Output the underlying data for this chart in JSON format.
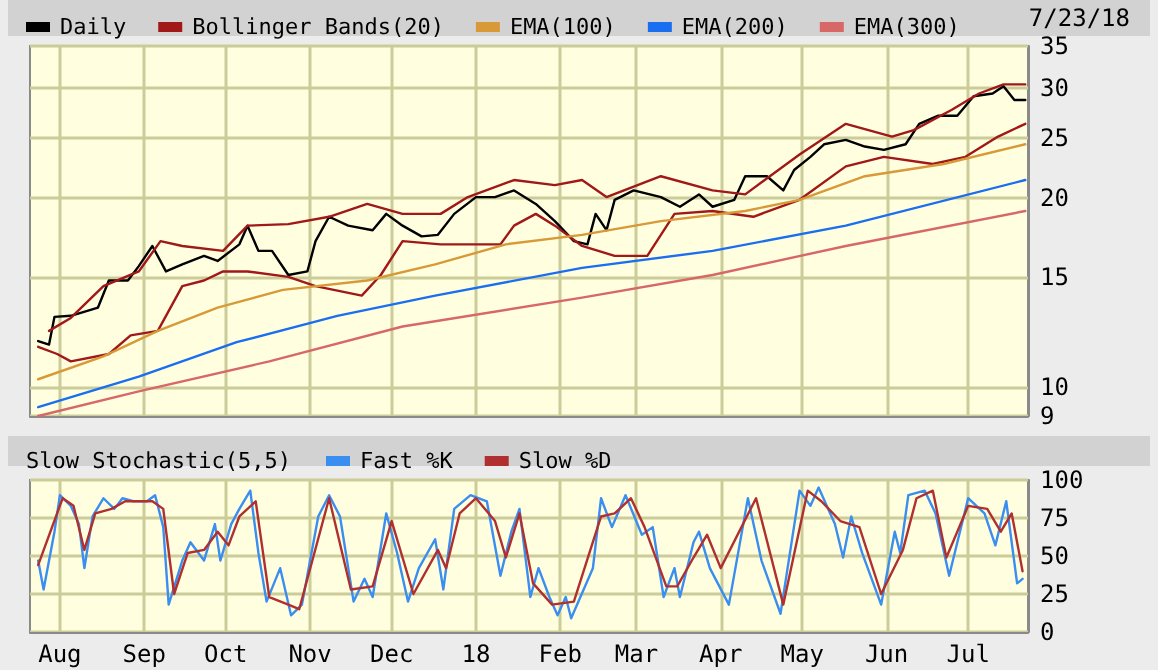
{
  "chart_data": [
    {
      "type": "line",
      "legend": "top",
      "log": true,
      "grid": true,
      "tick_labels": "y",
      "marker": "none",
      "line_style": "solid",
      "annotations": [
        "7/23/18"
      ],
      "xlim": [
        "2017-07-21",
        "2018-07-23"
      ],
      "xticks": [
        {
          "value": "2017-08-01",
          "label": null
        },
        {
          "value": "2017-09-01",
          "label": null
        },
        {
          "value": "2017-10-01",
          "label": null
        },
        {
          "value": "2017-11-01",
          "label": null
        },
        {
          "value": "2017-12-01",
          "label": null
        },
        {
          "value": "2018-01-01",
          "label": null
        },
        {
          "value": "2018-02-01",
          "label": null
        },
        {
          "value": "2018-03-01",
          "label": null
        },
        {
          "value": "2018-04-01",
          "label": null
        },
        {
          "value": "2018-05-01",
          "label": null
        },
        {
          "value": "2018-06-01",
          "label": null
        },
        {
          "value": "2018-07-01",
          "label": null
        }
      ],
      "ylim": [
        9,
        35
      ],
      "yticks": [
        9,
        10,
        15,
        20,
        25,
        30,
        35
      ],
      "series": [
        {
          "name": "Daily",
          "color": "#000000",
          "x": [
            "2017-07-24",
            "2017-07-28",
            "2017-07-30",
            "2017-08-05",
            "2017-08-15",
            "2017-08-19",
            "2017-08-26",
            "2017-08-30",
            "2017-09-04",
            "2017-09-09",
            "2017-09-15",
            "2017-09-23",
            "2017-09-28",
            "2017-10-06",
            "2017-10-09",
            "2017-10-13",
            "2017-10-18",
            "2017-10-24",
            "2017-10-31",
            "2017-11-03",
            "2017-11-08",
            "2017-11-15",
            "2017-11-24",
            "2017-11-29",
            "2017-12-05",
            "2017-12-12",
            "2017-12-18",
            "2017-12-24",
            "2018-01-01",
            "2018-01-08",
            "2018-01-15",
            "2018-01-23",
            "2018-01-30",
            "2018-02-06",
            "2018-02-11",
            "2018-02-14",
            "2018-02-18",
            "2018-02-21",
            "2018-02-28",
            "2018-03-10",
            "2018-03-17",
            "2018-03-24",
            "2018-03-29",
            "2018-04-06",
            "2018-04-10",
            "2018-04-18",
            "2018-04-24",
            "2018-04-28",
            "2018-05-04",
            "2018-05-09",
            "2018-05-17",
            "2018-05-24",
            "2018-05-31",
            "2018-06-08",
            "2018-06-13",
            "2018-06-20",
            "2018-06-27",
            "2018-07-03",
            "2018-07-10",
            "2018-07-14",
            "2018-07-18",
            "2018-07-22"
          ],
          "values": [
            11.85,
            11.7,
            12.95,
            13.0,
            13.4,
            14.8,
            14.8,
            15.6,
            16.8,
            15.3,
            15.7,
            16.2,
            15.9,
            16.9,
            18.1,
            16.5,
            16.5,
            15.1,
            15.3,
            17.1,
            18.7,
            18.1,
            17.8,
            18.9,
            18.1,
            17.4,
            17.5,
            18.9,
            20.1,
            20.1,
            20.6,
            19.6,
            18.4,
            17.1,
            16.9,
            18.9,
            17.8,
            19.9,
            20.6,
            20.1,
            19.4,
            20.3,
            19.4,
            19.9,
            21.7,
            21.7,
            20.6,
            22.2,
            23.3,
            24.4,
            24.8,
            24.2,
            23.9,
            24.4,
            26.3,
            27.1,
            27.1,
            29.1,
            29.4,
            30.2,
            28.7,
            28.7
          ]
        },
        {
          "name": "Bollinger Bands(20)",
          "color": "#a01818",
          "x": [
            "2017-07-28",
            "2017-08-05",
            "2017-08-17",
            "2017-08-30",
            "2017-09-07",
            "2017-09-15",
            "2017-09-30",
            "2017-10-09",
            "2017-10-24",
            "2017-11-08",
            "2017-11-22",
            "2017-12-05",
            "2017-12-19",
            "2017-12-29",
            "2018-01-15",
            "2018-01-30",
            "2018-02-09",
            "2018-02-18",
            "2018-03-10",
            "2018-03-29",
            "2018-04-10",
            "2018-04-30",
            "2018-05-17",
            "2018-06-03",
            "2018-06-11",
            "2018-06-25",
            "2018-07-05",
            "2018-07-14",
            "2018-07-22"
          ],
          "values": [
            12.3,
            12.9,
            14.5,
            15.3,
            17.1,
            16.8,
            16.5,
            18.1,
            18.2,
            18.7,
            19.6,
            18.9,
            18.9,
            20.1,
            21.4,
            21.0,
            21.4,
            20.1,
            21.7,
            20.6,
            20.3,
            23.5,
            26.3,
            25.1,
            25.7,
            27.7,
            29.4,
            30.4,
            30.4
          ]
        },
        {
          "color": "#a01818",
          "x": [
            "2017-07-24",
            "2017-07-31",
            "2017-08-05",
            "2017-08-19",
            "2017-08-27",
            "2017-09-06",
            "2017-09-15",
            "2017-09-23",
            "2017-09-30",
            "2017-10-09",
            "2017-10-24",
            "2017-11-03",
            "2017-11-20",
            "2017-11-27",
            "2017-12-05",
            "2017-12-19",
            "2017-12-29",
            "2018-01-10",
            "2018-01-15",
            "2018-01-23",
            "2018-01-30",
            "2018-02-09",
            "2018-02-21",
            "2018-03-05",
            "2018-03-15",
            "2018-03-29",
            "2018-04-13",
            "2018-04-30",
            "2018-05-17",
            "2018-05-31",
            "2018-06-18",
            "2018-06-30",
            "2018-07-12",
            "2018-07-22"
          ],
          "values": [
            11.6,
            11.3,
            11.0,
            11.3,
            12.1,
            12.3,
            14.5,
            14.8,
            15.3,
            15.3,
            15.0,
            14.5,
            14.0,
            15.1,
            17.1,
            16.9,
            16.9,
            16.9,
            18.1,
            18.9,
            18.1,
            16.8,
            16.2,
            16.2,
            18.9,
            19.1,
            18.7,
            19.9,
            22.5,
            23.3,
            22.7,
            23.3,
            25.1,
            26.3
          ]
        },
        {
          "name": "EMA(100)",
          "color": "#d89a38",
          "x": [
            "2017-07-24",
            "2017-08-17",
            "2017-09-06",
            "2017-09-28",
            "2017-10-22",
            "2017-11-22",
            "2017-12-17",
            "2018-01-12",
            "2018-02-09",
            "2018-03-10",
            "2018-04-10",
            "2018-04-30",
            "2018-05-24",
            "2018-06-22",
            "2018-07-22"
          ],
          "values": [
            10.3,
            11.2,
            12.3,
            13.4,
            14.3,
            14.8,
            15.7,
            16.9,
            17.5,
            18.4,
            19.1,
            19.9,
            21.7,
            22.7,
            24.4
          ]
        },
        {
          "name": "EMA(200)",
          "color": "#1a6ef0",
          "x": [
            "2017-07-24",
            "2017-08-30",
            "2017-10-05",
            "2017-11-11",
            "2017-12-17",
            "2018-02-09",
            "2018-03-29",
            "2018-05-17",
            "2018-07-22"
          ],
          "values": [
            9.3,
            10.4,
            11.8,
            13.0,
            14.0,
            15.5,
            16.5,
            18.1,
            21.4
          ]
        },
        {
          "name": "EMA(300)",
          "color": "#d86868",
          "x": [
            "2017-07-24",
            "2017-08-30",
            "2017-10-17",
            "2017-12-05",
            "2018-02-09",
            "2018-03-29",
            "2018-05-17",
            "2018-07-22"
          ],
          "values": [
            9.0,
            9.85,
            11.0,
            12.5,
            13.9,
            15.1,
            16.8,
            19.1
          ]
        }
      ]
    },
    {
      "type": "line",
      "title": "Slow Stochastic(5,5)",
      "legend": "top",
      "grid": true,
      "marker": "none",
      "line_style": "solid",
      "xlim": [
        "2017-07-21",
        "2018-07-23"
      ],
      "xticks": [
        {
          "value": "2017-08-01",
          "label": "Aug"
        },
        {
          "value": "2017-09-01",
          "label": "Sep"
        },
        {
          "value": "2017-10-01",
          "label": "Oct"
        },
        {
          "value": "2017-11-01",
          "label": "Nov"
        },
        {
          "value": "2017-12-01",
          "label": "Dec"
        },
        {
          "value": "2018-01-01",
          "label": "18"
        },
        {
          "value": "2018-02-01",
          "label": "Feb"
        },
        {
          "value": "2018-03-01",
          "label": "Mar"
        },
        {
          "value": "2018-04-01",
          "label": "Apr"
        },
        {
          "value": "2018-05-01",
          "label": "May"
        },
        {
          "value": "2018-06-01",
          "label": "Jun"
        },
        {
          "value": "2018-07-01",
          "label": "Jul"
        }
      ],
      "ylim": [
        0,
        100
      ],
      "yticks": [
        0,
        25,
        50,
        75,
        100
      ],
      "series": [
        {
          "name": "Fast %K",
          "color": "#3a8ef0",
          "x": [
            "2017-07-24",
            "2017-07-26",
            "2017-07-30",
            "2017-08-01",
            "2017-08-05",
            "2017-08-08",
            "2017-08-10",
            "2017-08-13",
            "2017-08-17",
            "2017-08-21",
            "2017-08-24",
            "2017-08-28",
            "2017-09-02",
            "2017-09-05",
            "2017-09-08",
            "2017-09-10",
            "2017-09-15",
            "2017-09-18",
            "2017-09-23",
            "2017-09-27",
            "2017-09-29",
            "2017-10-03",
            "2017-10-06",
            "2017-10-10",
            "2017-10-13",
            "2017-10-16",
            "2017-10-21",
            "2017-10-25",
            "2017-10-29",
            "2017-11-04",
            "2017-11-08",
            "2017-11-12",
            "2017-11-17",
            "2017-11-21",
            "2017-11-24",
            "2017-11-29",
            "2017-12-03",
            "2017-12-07",
            "2017-12-11",
            "2017-12-17",
            "2017-12-20",
            "2017-12-24",
            "2017-12-30",
            "2018-01-05",
            "2018-01-10",
            "2018-01-14",
            "2018-01-17",
            "2018-01-21",
            "2018-01-24",
            "2018-01-28",
            "2018-01-31",
            "2018-02-03",
            "2018-02-05",
            "2018-02-13",
            "2018-02-16",
            "2018-02-20",
            "2018-02-25",
            "2018-03-03",
            "2018-03-07",
            "2018-03-11",
            "2018-03-15",
            "2018-03-17",
            "2018-03-22",
            "2018-03-24",
            "2018-03-28",
            "2018-04-04",
            "2018-04-11",
            "2018-04-16",
            "2018-04-23",
            "2018-04-30",
            "2018-05-04",
            "2018-05-07",
            "2018-05-13",
            "2018-05-16",
            "2018-05-19",
            "2018-05-23",
            "2018-05-30",
            "2018-06-04",
            "2018-06-06",
            "2018-06-09",
            "2018-06-15",
            "2018-06-19",
            "2018-06-24",
            "2018-07-01",
            "2018-07-07",
            "2018-07-11",
            "2018-07-15",
            "2018-07-19",
            "2018-07-21"
          ],
          "values": [
            47,
            28,
            66,
            90,
            83,
            71,
            42,
            76,
            88,
            81,
            88,
            86,
            86,
            90,
            69,
            18,
            47,
            59,
            47,
            71,
            47,
            71,
            81,
            93,
            52,
            20,
            42,
            11,
            18,
            76,
            90,
            76,
            20,
            35,
            23,
            78,
            52,
            20,
            42,
            61,
            28,
            81,
            90,
            86,
            37,
            66,
            81,
            23,
            42,
            23,
            11,
            23,
            9,
            42,
            88,
            69,
            90,
            64,
            69,
            23,
            42,
            23,
            59,
            66,
            42,
            18,
            88,
            47,
            12,
            93,
            83,
            95,
            71,
            49,
            76,
            52,
            18,
            66,
            52,
            90,
            93,
            78,
            37,
            88,
            78,
            57,
            86,
            32,
            35
          ]
        },
        {
          "name": "Slow %D",
          "color": "#b03030",
          "x": [
            "2017-07-24",
            "2017-08-02",
            "2017-08-06",
            "2017-08-10",
            "2017-08-14",
            "2017-08-20",
            "2017-08-25",
            "2017-09-04",
            "2017-09-08",
            "2017-09-12",
            "2017-09-17",
            "2017-09-23",
            "2017-09-28",
            "2017-10-02",
            "2017-10-06",
            "2017-10-12",
            "2017-10-17",
            "2017-10-24",
            "2017-10-28",
            "2017-11-08",
            "2017-11-16",
            "2017-11-24",
            "2017-12-01",
            "2017-12-09",
            "2017-12-18",
            "2017-12-21",
            "2017-12-26",
            "2018-01-01",
            "2018-01-08",
            "2018-01-12",
            "2018-01-17",
            "2018-01-22",
            "2018-01-29",
            "2018-02-06",
            "2018-02-16",
            "2018-02-21",
            "2018-02-27",
            "2018-03-04",
            "2018-03-12",
            "2018-03-16",
            "2018-03-22",
            "2018-03-27",
            "2018-04-01",
            "2018-04-14",
            "2018-04-24",
            "2018-05-03",
            "2018-05-08",
            "2018-05-15",
            "2018-05-22",
            "2018-05-30",
            "2018-06-07",
            "2018-06-12",
            "2018-06-18",
            "2018-06-23",
            "2018-07-01",
            "2018-07-08",
            "2018-07-13",
            "2018-07-17",
            "2018-07-21"
          ],
          "values": [
            44,
            88,
            83,
            54,
            78,
            81,
            86,
            86,
            81,
            25,
            52,
            54,
            66,
            57,
            76,
            86,
            23,
            18,
            15,
            88,
            28,
            30,
            73,
            25,
            54,
            42,
            78,
            88,
            73,
            49,
            78,
            32,
            18,
            20,
            76,
            78,
            88,
            69,
            30,
            30,
            49,
            64,
            42,
            88,
            18,
            93,
            86,
            73,
            69,
            25,
            54,
            88,
            93,
            49,
            83,
            81,
            66,
            78,
            40
          ]
        }
      ]
    }
  ]
}
